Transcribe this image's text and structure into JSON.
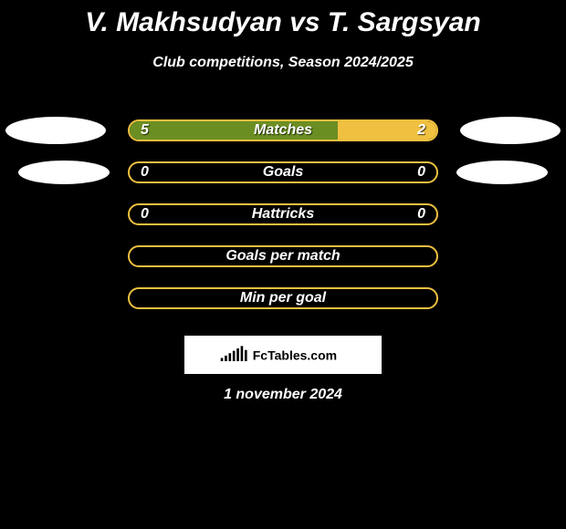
{
  "title": "V. Makhsudyan vs T. Sargsyan",
  "subtitle": "Club competitions, Season 2024/2025",
  "date": "1 november 2024",
  "colors": {
    "left": "#6b8e23",
    "right": "#f0c040",
    "border_mixed": "#c0a94a",
    "track_bg": "#000000",
    "ellipse": "#ffffff",
    "text": "#ffffff"
  },
  "logo": {
    "text": "FcTables.com",
    "bars": [
      4,
      7,
      10,
      13,
      16,
      19,
      14
    ]
  },
  "stats": [
    {
      "label": "Matches",
      "left_val": "5",
      "right_val": "2",
      "left_fill_pct": 68,
      "right_fill_pct": 32,
      "show_values": true,
      "ellipse": "big"
    },
    {
      "label": "Goals",
      "left_val": "0",
      "right_val": "0",
      "left_fill_pct": 0,
      "right_fill_pct": 0,
      "show_values": true,
      "ellipse": "small"
    },
    {
      "label": "Hattricks",
      "left_val": "0",
      "right_val": "0",
      "left_fill_pct": 0,
      "right_fill_pct": 0,
      "show_values": true,
      "ellipse": "none"
    },
    {
      "label": "Goals per match",
      "left_val": "",
      "right_val": "",
      "left_fill_pct": 0,
      "right_fill_pct": 0,
      "show_values": false,
      "ellipse": "none"
    },
    {
      "label": "Min per goal",
      "left_val": "",
      "right_val": "",
      "left_fill_pct": 0,
      "right_fill_pct": 0,
      "show_values": false,
      "ellipse": "none"
    }
  ]
}
